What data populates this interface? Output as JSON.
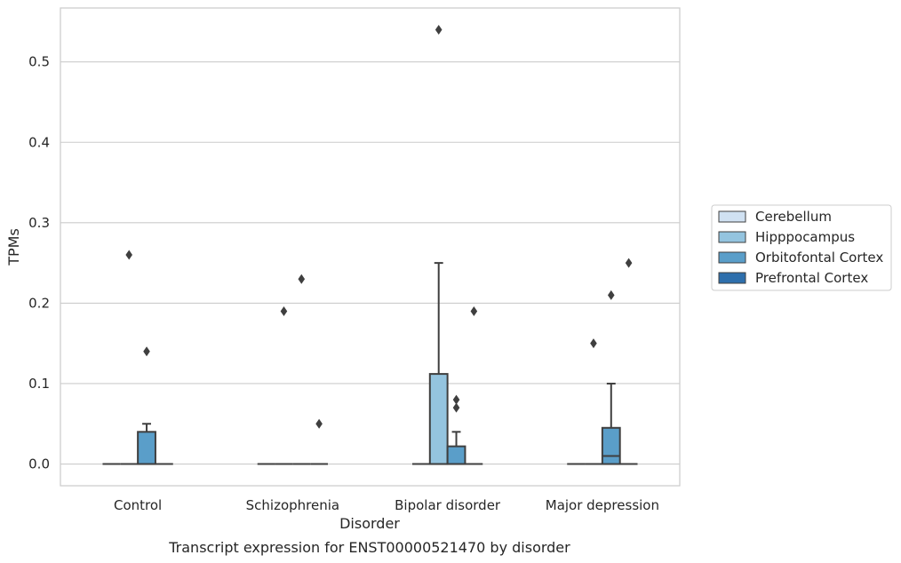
{
  "chart_data": {
    "type": "box",
    "title": "Transcript expression for ENST00000521470 by disorder",
    "xlabel": "Disorder",
    "ylabel": "TPMs",
    "ylim": [
      -0.027,
      0.567
    ],
    "yticks": [
      0.0,
      0.1,
      0.2,
      0.3,
      0.4,
      0.5
    ],
    "ytick_labels": [
      "0.0",
      "0.1",
      "0.2",
      "0.3",
      "0.4",
      "0.5"
    ],
    "grid": "horizontal",
    "legend_position": "right",
    "categories": [
      "Control",
      "Schizophrenia",
      "Bipolar disorder",
      "Major depression"
    ],
    "series": [
      {
        "name": "Cerebellum",
        "color": "#d0e1f2",
        "boxes": [
          {
            "q1": 0,
            "median": 0,
            "q3": 0,
            "whisker_low": 0,
            "whisker_high": 0,
            "outliers": []
          },
          {
            "q1": 0,
            "median": 0,
            "q3": 0,
            "whisker_low": 0,
            "whisker_high": 0,
            "outliers": []
          },
          {
            "q1": 0,
            "median": 0,
            "q3": 0,
            "whisker_low": 0,
            "whisker_high": 0,
            "outliers": []
          },
          {
            "q1": 0,
            "median": 0,
            "q3": 0,
            "whisker_low": 0,
            "whisker_high": 0,
            "outliers": []
          }
        ]
      },
      {
        "name": "Hipppocampus",
        "color": "#94c4df",
        "boxes": [
          {
            "q1": 0,
            "median": 0,
            "q3": 0,
            "whisker_low": 0,
            "whisker_high": 0,
            "outliers": [
              0.26
            ]
          },
          {
            "q1": 0,
            "median": 0,
            "q3": 0,
            "whisker_low": 0,
            "whisker_high": 0,
            "outliers": [
              0.19
            ]
          },
          {
            "q1": 0,
            "median": 0,
            "q3": 0.112,
            "whisker_low": 0,
            "whisker_high": 0.25,
            "outliers": [
              0.54
            ]
          },
          {
            "q1": 0,
            "median": 0,
            "q3": 0,
            "whisker_low": 0,
            "whisker_high": 0,
            "outliers": [
              0.15
            ]
          }
        ]
      },
      {
        "name": "Orbitofontal Cortex",
        "color": "#5a9ec9",
        "boxes": [
          {
            "q1": 0,
            "median": 0,
            "q3": 0.04,
            "whisker_low": 0,
            "whisker_high": 0.05,
            "outliers": [
              0.14
            ]
          },
          {
            "q1": 0,
            "median": 0,
            "q3": 0,
            "whisker_low": 0,
            "whisker_high": 0,
            "outliers": [
              0.23
            ]
          },
          {
            "q1": 0,
            "median": 0,
            "q3": 0.022,
            "whisker_low": 0,
            "whisker_high": 0.04,
            "outliers": [
              0.07,
              0.08
            ]
          },
          {
            "q1": 0,
            "median": 0.01,
            "q3": 0.045,
            "whisker_low": 0,
            "whisker_high": 0.1,
            "outliers": [
              0.21
            ]
          }
        ]
      },
      {
        "name": "Prefrontal Cortex",
        "color": "#2e6fac",
        "boxes": [
          {
            "q1": 0,
            "median": 0,
            "q3": 0,
            "whisker_low": 0,
            "whisker_high": 0,
            "outliers": []
          },
          {
            "q1": 0,
            "median": 0,
            "q3": 0,
            "whisker_low": 0,
            "whisker_high": 0,
            "outliers": [
              0.05
            ]
          },
          {
            "q1": 0,
            "median": 0,
            "q3": 0,
            "whisker_low": 0,
            "whisker_high": 0,
            "outliers": [
              0.19
            ]
          },
          {
            "q1": 0,
            "median": 0,
            "q3": 0,
            "whisker_low": 0,
            "whisker_high": 0,
            "outliers": [
              0.25
            ]
          }
        ]
      }
    ]
  }
}
